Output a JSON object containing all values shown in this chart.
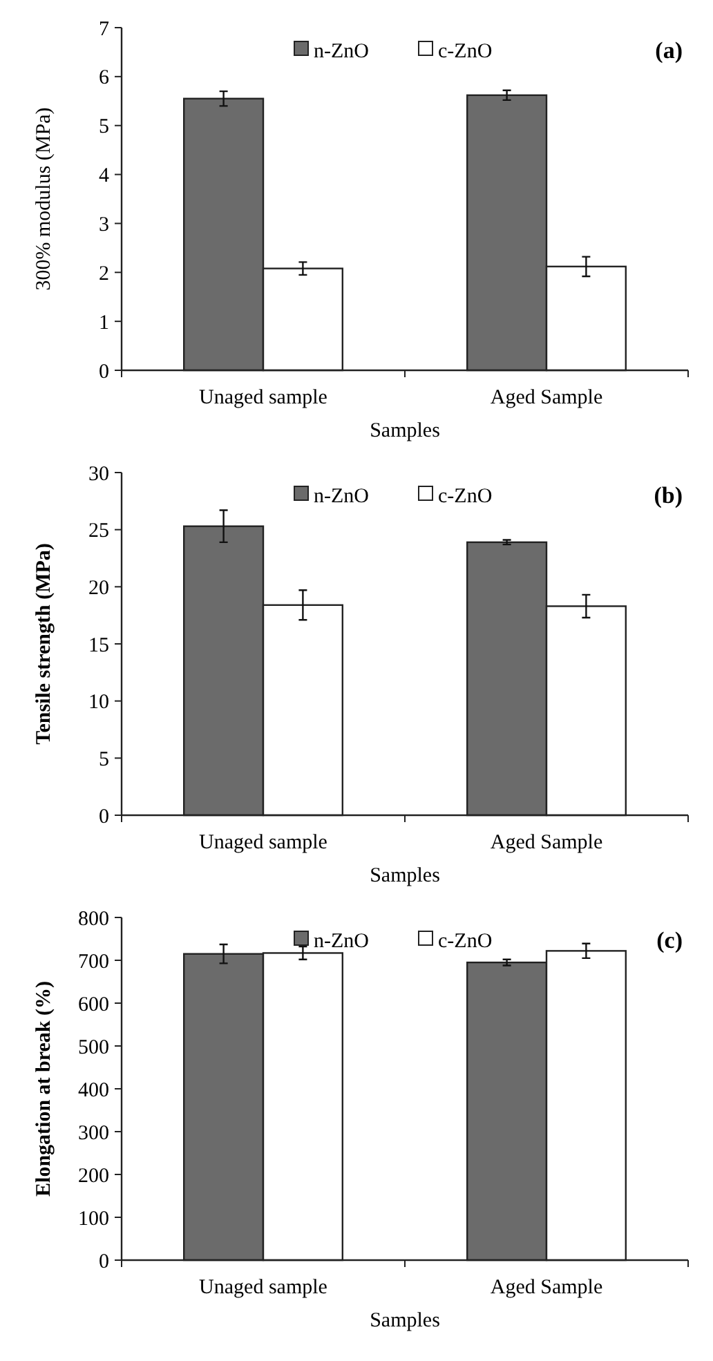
{
  "chart_data": [
    {
      "type": "bar",
      "title": "(a)",
      "xlabel": "Samples",
      "ylabel": "300% modulus (MPa)",
      "categories": [
        "Unaged sample",
        "Aged Sample"
      ],
      "series": [
        {
          "name": "n-ZnO",
          "color": "#6b6b6b",
          "values": [
            5.55,
            5.62
          ],
          "errors": [
            0.15,
            0.1
          ]
        },
        {
          "name": "c-ZnO",
          "color": "#ffffff",
          "values": [
            2.08,
            2.12
          ],
          "errors": [
            0.13,
            0.2
          ]
        }
      ],
      "ylim": [
        0,
        7
      ],
      "yticks": [
        0,
        1,
        2,
        3,
        4,
        5,
        6,
        7
      ],
      "legend": "top"
    },
    {
      "type": "bar",
      "title": "(b)",
      "xlabel": "Samples",
      "ylabel": "Tensile strength (MPa)",
      "categories": [
        "Unaged sample",
        "Aged Sample"
      ],
      "series": [
        {
          "name": "n-ZnO",
          "color": "#6b6b6b",
          "values": [
            25.3,
            23.9
          ],
          "errors": [
            1.4,
            0.2
          ]
        },
        {
          "name": "c-ZnO",
          "color": "#ffffff",
          "values": [
            18.4,
            18.3
          ],
          "errors": [
            1.3,
            1.0
          ]
        }
      ],
      "ylim": [
        0,
        30
      ],
      "yticks": [
        0,
        5,
        10,
        15,
        20,
        25,
        30
      ],
      "legend": "top"
    },
    {
      "type": "bar",
      "title": "(c)",
      "xlabel": "Samples",
      "ylabel": "Elongation at break (%)",
      "categories": [
        "Unaged sample",
        "Aged Sample"
      ],
      "series": [
        {
          "name": "n-ZnO",
          "color": "#6b6b6b",
          "values": [
            715,
            695
          ],
          "errors": [
            22,
            7
          ]
        },
        {
          "name": "c-ZnO",
          "color": "#ffffff",
          "values": [
            717,
            722
          ],
          "errors": [
            15,
            17
          ]
        }
      ],
      "ylim": [
        0,
        800
      ],
      "yticks": [
        0,
        100,
        200,
        300,
        400,
        500,
        600,
        700,
        800
      ],
      "legend": "top"
    }
  ]
}
